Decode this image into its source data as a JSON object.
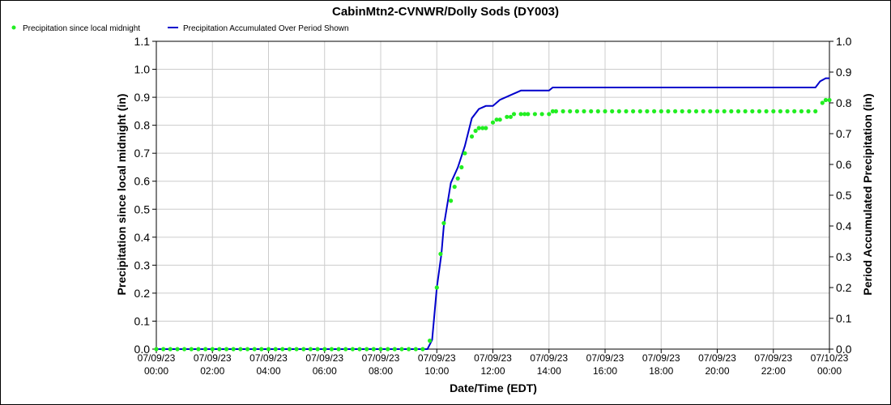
{
  "chart_data": {
    "type": "line",
    "title": "CabinMtn2-CVNWR/Dolly Sods (DY003)",
    "xlabel": "Date/Time (EDT)",
    "ylabel": "Precipitation since local midnight (in)",
    "y2label": "Period Accumulated Precipitation (in)",
    "ylim": [
      0,
      1.1
    ],
    "y2lim": [
      0,
      1.0
    ],
    "xlim": [
      "07/09/23 00:00",
      "07/10/23 00:00"
    ],
    "grid": true,
    "legend_position": "top-left",
    "colors": {
      "series_points": "#22ee22",
      "series_line": "#0000cc",
      "grid": "#cccccc"
    },
    "y_ticks": [
      "0.0",
      "0.1",
      "0.2",
      "0.3",
      "0.4",
      "0.5",
      "0.6",
      "0.7",
      "0.8",
      "0.9",
      "1.0",
      "1.1"
    ],
    "y2_ticks": [
      "0.0",
      "0.1",
      "0.2",
      "0.3",
      "0.4",
      "0.5",
      "0.6",
      "0.7",
      "0.8",
      "0.9",
      "1.0"
    ],
    "x_ticks": [
      {
        "date": "07/09/23",
        "time": "00:00"
      },
      {
        "date": "07/09/23",
        "time": "02:00"
      },
      {
        "date": "07/09/23",
        "time": "04:00"
      },
      {
        "date": "07/09/23",
        "time": "06:00"
      },
      {
        "date": "07/09/23",
        "time": "08:00"
      },
      {
        "date": "07/09/23",
        "time": "10:00"
      },
      {
        "date": "07/09/23",
        "time": "12:00"
      },
      {
        "date": "07/09/23",
        "time": "14:00"
      },
      {
        "date": "07/09/23",
        "time": "16:00"
      },
      {
        "date": "07/09/23",
        "time": "18:00"
      },
      {
        "date": "07/09/23",
        "time": "20:00"
      },
      {
        "date": "07/09/23",
        "time": "22:00"
      },
      {
        "date": "07/10/23",
        "time": "00:00"
      }
    ],
    "series": [
      {
        "name": "Precipitation since local midnight",
        "axis": "left",
        "style": "points",
        "points": [
          [
            "00:00",
            0
          ],
          [
            "00:15",
            0
          ],
          [
            "00:30",
            0
          ],
          [
            "00:45",
            0
          ],
          [
            "01:00",
            0
          ],
          [
            "01:15",
            0
          ],
          [
            "01:30",
            0
          ],
          [
            "01:45",
            0
          ],
          [
            "02:00",
            0
          ],
          [
            "02:15",
            0
          ],
          [
            "02:30",
            0
          ],
          [
            "02:45",
            0
          ],
          [
            "03:00",
            0
          ],
          [
            "03:15",
            0
          ],
          [
            "03:30",
            0
          ],
          [
            "03:45",
            0
          ],
          [
            "04:00",
            0
          ],
          [
            "04:15",
            0
          ],
          [
            "04:30",
            0
          ],
          [
            "04:45",
            0
          ],
          [
            "05:00",
            0
          ],
          [
            "05:15",
            0
          ],
          [
            "05:30",
            0
          ],
          [
            "05:45",
            0
          ],
          [
            "06:00",
            0
          ],
          [
            "06:15",
            0
          ],
          [
            "06:30",
            0
          ],
          [
            "06:45",
            0
          ],
          [
            "07:00",
            0
          ],
          [
            "07:15",
            0
          ],
          [
            "07:30",
            0
          ],
          [
            "07:45",
            0
          ],
          [
            "08:00",
            0
          ],
          [
            "08:15",
            0
          ],
          [
            "08:30",
            0
          ],
          [
            "08:45",
            0
          ],
          [
            "09:00",
            0
          ],
          [
            "09:15",
            0
          ],
          [
            "09:30",
            0
          ],
          [
            "09:45",
            0.03
          ],
          [
            "10:00",
            0.22
          ],
          [
            "10:08",
            0.34
          ],
          [
            "10:15",
            0.45
          ],
          [
            "10:30",
            0.53
          ],
          [
            "10:38",
            0.58
          ],
          [
            "10:45",
            0.61
          ],
          [
            "10:53",
            0.65
          ],
          [
            "11:00",
            0.7
          ],
          [
            "11:15",
            0.76
          ],
          [
            "11:23",
            0.78
          ],
          [
            "11:30",
            0.79
          ],
          [
            "11:38",
            0.79
          ],
          [
            "11:45",
            0.79
          ],
          [
            "12:00",
            0.81
          ],
          [
            "12:08",
            0.82
          ],
          [
            "12:15",
            0.82
          ],
          [
            "12:30",
            0.83
          ],
          [
            "12:38",
            0.83
          ],
          [
            "12:45",
            0.84
          ],
          [
            "13:00",
            0.84
          ],
          [
            "13:08",
            0.84
          ],
          [
            "13:15",
            0.84
          ],
          [
            "13:30",
            0.84
          ],
          [
            "13:45",
            0.84
          ],
          [
            "14:00",
            0.84
          ],
          [
            "14:08",
            0.85
          ],
          [
            "14:15",
            0.85
          ],
          [
            "14:30",
            0.85
          ],
          [
            "14:45",
            0.85
          ],
          [
            "15:00",
            0.85
          ],
          [
            "15:15",
            0.85
          ],
          [
            "15:30",
            0.85
          ],
          [
            "15:45",
            0.85
          ],
          [
            "16:00",
            0.85
          ],
          [
            "16:15",
            0.85
          ],
          [
            "16:30",
            0.85
          ],
          [
            "16:45",
            0.85
          ],
          [
            "17:00",
            0.85
          ],
          [
            "17:15",
            0.85
          ],
          [
            "17:30",
            0.85
          ],
          [
            "17:45",
            0.85
          ],
          [
            "18:00",
            0.85
          ],
          [
            "18:15",
            0.85
          ],
          [
            "18:30",
            0.85
          ],
          [
            "18:45",
            0.85
          ],
          [
            "19:00",
            0.85
          ],
          [
            "19:15",
            0.85
          ],
          [
            "19:30",
            0.85
          ],
          [
            "19:45",
            0.85
          ],
          [
            "20:00",
            0.85
          ],
          [
            "20:15",
            0.85
          ],
          [
            "20:30",
            0.85
          ],
          [
            "20:45",
            0.85
          ],
          [
            "21:00",
            0.85
          ],
          [
            "21:15",
            0.85
          ],
          [
            "21:30",
            0.85
          ],
          [
            "21:45",
            0.85
          ],
          [
            "22:00",
            0.85
          ],
          [
            "22:15",
            0.85
          ],
          [
            "22:30",
            0.85
          ],
          [
            "22:45",
            0.85
          ],
          [
            "23:00",
            0.85
          ],
          [
            "23:15",
            0.85
          ],
          [
            "23:30",
            0.85
          ],
          [
            "23:45",
            0.88
          ],
          [
            "23:52",
            0.89
          ],
          [
            "24:00",
            0.89
          ]
        ]
      },
      {
        "name": "Precipitation Accumulated Over Period Shown",
        "axis": "right",
        "style": "line",
        "points": [
          [
            "00:00",
            0
          ],
          [
            "09:40",
            0
          ],
          [
            "09:50",
            0.03
          ],
          [
            "10:00",
            0.2
          ],
          [
            "10:10",
            0.31
          ],
          [
            "10:15",
            0.4
          ],
          [
            "10:30",
            0.54
          ],
          [
            "10:45",
            0.59
          ],
          [
            "11:00",
            0.66
          ],
          [
            "11:15",
            0.75
          ],
          [
            "11:30",
            0.78
          ],
          [
            "11:45",
            0.79
          ],
          [
            "12:00",
            0.79
          ],
          [
            "12:15",
            0.81
          ],
          [
            "12:30",
            0.82
          ],
          [
            "12:45",
            0.83
          ],
          [
            "13:00",
            0.84
          ],
          [
            "14:00",
            0.84
          ],
          [
            "14:08",
            0.85
          ],
          [
            "23:30",
            0.85
          ],
          [
            "23:40",
            0.87
          ],
          [
            "23:52",
            0.88
          ],
          [
            "24:00",
            0.88
          ]
        ]
      }
    ]
  }
}
